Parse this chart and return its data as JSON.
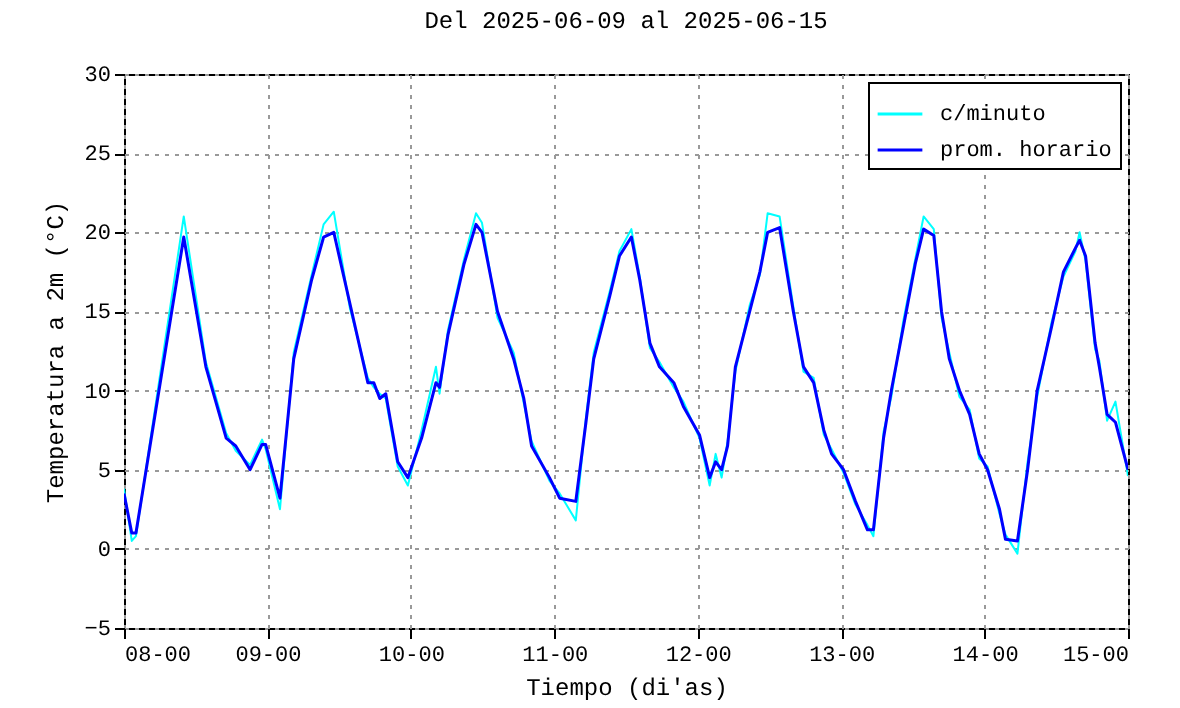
{
  "chart_data": {
    "type": "line",
    "title": "Del 2025-06-09 al 2025-06-15",
    "xlabel": "Tiempo (di'as)",
    "ylabel": "Temperatura a 2m (°C)",
    "xlim": [
      "2025-06-08T00:00",
      "2025-06-15T00:00"
    ],
    "ylim": [
      -5,
      30
    ],
    "xticks": [
      {
        "value": "2025-06-08T00:00",
        "label": "08-00"
      },
      {
        "value": "2025-06-09T00:00",
        "label": "09-00"
      },
      {
        "value": "2025-06-10T00:00",
        "label": "10-00"
      },
      {
        "value": "2025-06-11T00:00",
        "label": "11-00"
      },
      {
        "value": "2025-06-12T00:00",
        "label": "12-00"
      },
      {
        "value": "2025-06-13T00:00",
        "label": "13-00"
      },
      {
        "value": "2025-06-14T00:00",
        "label": "14-00"
      },
      {
        "value": "2025-06-15T00:00",
        "label": "15-00"
      }
    ],
    "yticks": [
      -5,
      0,
      5,
      10,
      15,
      20,
      25,
      30
    ],
    "grid": true,
    "legend": "top right",
    "line_style": "solid",
    "marker": "none",
    "x": [
      "2025-06-08T00:00",
      "2025-06-08T01:18",
      "2025-06-08T02:00",
      "2025-06-08T10:00",
      "2025-06-08T13:42",
      "2025-06-08T17:06",
      "2025-06-08T18:42",
      "2025-06-08T21:06",
      "2025-06-08T23:06",
      "2025-06-08T23:42",
      "2025-06-09T02:06",
      "2025-06-09T04:24",
      "2025-06-09T07:24",
      "2025-06-09T09:24",
      "2025-06-09T11:06",
      "2025-06-09T13:48",
      "2025-06-09T16:48",
      "2025-06-09T17:48",
      "2025-06-09T18:48",
      "2025-06-09T19:48",
      "2025-06-09T21:48",
      "2025-06-09T23:30",
      "2025-06-10T01:48",
      "2025-06-10T04:12",
      "2025-06-10T04:48",
      "2025-06-10T06:12",
      "2025-06-10T08:54",
      "2025-06-10T10:54",
      "2025-06-10T11:54",
      "2025-06-10T14:30",
      "2025-06-10T17:12",
      "2025-06-10T18:54",
      "2025-06-10T20:12",
      "2025-06-10T23:12",
      "2025-06-11T00:54",
      "2025-06-11T03:36",
      "2025-06-11T05:18",
      "2025-06-11T06:36",
      "2025-06-11T09:18",
      "2025-06-11T10:54",
      "2025-06-11T12:54",
      "2025-06-11T14:18",
      "2025-06-11T16:00",
      "2025-06-11T17:36",
      "2025-06-11T20:00",
      "2025-06-11T21:36",
      "2025-06-12T00:18",
      "2025-06-12T02:00",
      "2025-06-12T03:00",
      "2025-06-12T04:00",
      "2025-06-12T05:00",
      "2025-06-12T06:18",
      "2025-06-12T08:42",
      "2025-06-12T10:24",
      "2025-06-12T11:42",
      "2025-06-12T13:42",
      "2025-06-12T16:00",
      "2025-06-12T17:42",
      "2025-06-12T19:24",
      "2025-06-12T21:06",
      "2025-06-12T22:24",
      "2025-06-13T00:24",
      "2025-06-13T02:24",
      "2025-06-13T04:24",
      "2025-06-13T05:24",
      "2025-06-13T07:06",
      "2025-06-13T08:24",
      "2025-06-13T10:24",
      "2025-06-13T12:24",
      "2025-06-13T13:48",
      "2025-06-13T15:30",
      "2025-06-13T16:48",
      "2025-06-13T18:06",
      "2025-06-13T19:48",
      "2025-06-13T21:30",
      "2025-06-13T23:06",
      "2025-06-14T00:30",
      "2025-06-14T02:30",
      "2025-06-14T03:30",
      "2025-06-14T05:30",
      "2025-06-14T07:12",
      "2025-06-14T08:48",
      "2025-06-14T11:12",
      "2025-06-14T13:12",
      "2025-06-14T15:12",
      "2025-06-14T15:54",
      "2025-06-14T16:54",
      "2025-06-14T18:30",
      "2025-06-14T19:12",
      "2025-06-14T20:30",
      "2025-06-14T21:54",
      "2025-06-15T00:00"
    ],
    "series": [
      {
        "name": "c/minuto",
        "color": "#00ffff",
        "values": [
          3.8,
          0.5,
          0.8,
          21,
          11.8,
          7.3,
          6.2,
          5.3,
          6.9,
          6.3,
          2.5,
          12.4,
          17.3,
          20.5,
          21.3,
          15.2,
          10.8,
          10.2,
          9.8,
          9.5,
          5.2,
          4.0,
          7.5,
          11.5,
          9.8,
          13.8,
          18.3,
          21.2,
          20.6,
          14.6,
          12.4,
          9.2,
          6.8,
          4.3,
          3.5,
          1.8,
          8.3,
          12.4,
          16.3,
          18.8,
          20.2,
          17.2,
          12.7,
          11.8,
          10.2,
          9.3,
          7,
          4.0,
          6,
          4.5,
          6.8,
          11.2,
          15.4,
          17.3,
          21.2,
          21,
          15.3,
          11.2,
          10.8,
          7.2,
          6.3,
          4.8,
          2.8,
          1.5,
          0.8,
          7.4,
          9.6,
          14.4,
          18.3,
          21,
          20.2,
          14.6,
          12.4,
          9.6,
          8.8,
          5.7,
          5.2,
          2.2,
          0.9,
          -0.3,
          5.5,
          9.6,
          14.3,
          17.2,
          18.8,
          20,
          18.2,
          12.6,
          11.9,
          8.1,
          9.3,
          4.6
        ]
      },
      {
        "name": "prom. horario",
        "color": "#0000ff",
        "values": [
          3.5,
          1.0,
          1.0,
          19.7,
          11.5,
          7,
          6.5,
          5,
          6.6,
          6.6,
          3.2,
          12,
          17,
          19.7,
          20,
          15.5,
          10.5,
          10.5,
          9.5,
          9.8,
          5.5,
          4.5,
          7,
          10.5,
          10.2,
          13.5,
          18,
          20.5,
          20,
          15,
          12,
          9.5,
          6.5,
          4.5,
          3.2,
          3,
          8,
          12,
          16,
          18.5,
          19.7,
          17,
          13,
          11.5,
          10.5,
          9,
          7.2,
          4.5,
          5.5,
          5,
          6.5,
          11.5,
          15,
          17.5,
          20,
          20.3,
          15,
          11.5,
          10.5,
          7.5,
          6,
          5,
          3,
          1.2,
          1.2,
          7,
          10,
          14,
          18,
          20.2,
          19.8,
          15,
          12,
          10,
          8.5,
          6,
          5,
          2.5,
          0.6,
          0.5,
          5,
          10,
          14,
          17.5,
          19,
          19.5,
          18.5,
          13,
          11.5,
          8.5,
          8,
          5
        ]
      }
    ]
  }
}
